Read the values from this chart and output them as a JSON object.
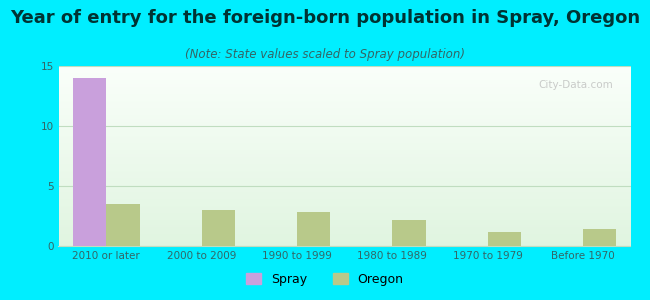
{
  "title": "Year of entry for the foreign-born population in Spray, Oregon",
  "subtitle": "(Note: State values scaled to Spray population)",
  "categories": [
    "2010 or later",
    "2000 to 2009",
    "1990 to 1999",
    "1980 to 1989",
    "1970 to 1979",
    "Before 1970"
  ],
  "spray_values": [
    14,
    0,
    0,
    0,
    0,
    0
  ],
  "oregon_values": [
    3.5,
    3.0,
    2.8,
    2.2,
    1.2,
    1.4
  ],
  "spray_color": "#c9a0dc",
  "oregon_color": "#b8c98a",
  "background_color": "#00eeff",
  "plot_bg_color": "#d8f0dc",
  "grid_color": "#c0ddc0",
  "ylim": [
    0,
    15
  ],
  "yticks": [
    0,
    5,
    10,
    15
  ],
  "bar_width": 0.35,
  "title_fontsize": 13,
  "subtitle_fontsize": 8.5,
  "tick_fontsize": 7.5,
  "legend_fontsize": 9,
  "title_color": "#003333",
  "subtitle_color": "#336666",
  "tick_color": "#336666"
}
